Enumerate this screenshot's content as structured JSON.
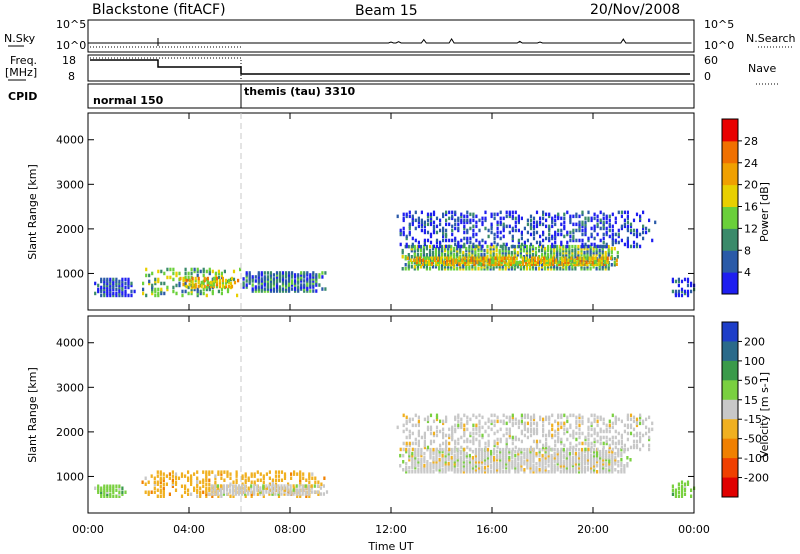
{
  "header": {
    "station": "Blackstone (fitACF)",
    "beam": "Beam 15",
    "date": "20/Nov/2008"
  },
  "strips": {
    "nsky_label": "N.Sky",
    "nsky_ticks": [
      "10^5",
      "10^0"
    ],
    "nsearch_label": "N.Search",
    "nsearch_ticks": [
      "10^5",
      "10^0"
    ],
    "freq_label": "Freq.",
    "freq_unit": "[MHz]",
    "freq_ticks": [
      "18",
      "8"
    ],
    "nave_label": "Nave",
    "nave_ticks": [
      "60",
      "0"
    ],
    "cpid_label": "CPID",
    "cpid_segments": [
      {
        "name": "normal 150",
        "start_hour": 0,
        "end_hour": 6
      },
      {
        "name": "themis (tau) 3310",
        "start_hour": 6,
        "end_hour": 24
      }
    ]
  },
  "chart_data": [
    {
      "type": "heatmap",
      "title": "",
      "ylabel": "Slant Range [km]",
      "xlabel": "",
      "xlim_hours": [
        0,
        24
      ],
      "ylim": [
        180,
        4600
      ],
      "yticks": [
        1000,
        2000,
        3000,
        4000
      ],
      "colorbar": {
        "label": "Power [dB]",
        "ticks": [
          4,
          8,
          12,
          16,
          20,
          24,
          28
        ],
        "range": [
          0,
          32
        ],
        "colors": [
          "#1e1ef0",
          "#2a5aa8",
          "#3a8a6a",
          "#6ad03a",
          "#e8d000",
          "#f0a000",
          "#f07000",
          "#e80000"
        ]
      },
      "regions": [
        {
          "t0": 0.0,
          "t1": 1.9,
          "r0": 500,
          "r1": 900,
          "level": 1
        },
        {
          "t0": 1.9,
          "t1": 6.0,
          "r0": 500,
          "r1": 1100,
          "level": 3
        },
        {
          "t0": 3.5,
          "t1": 6.0,
          "r0": 700,
          "r1": 900,
          "level": 5
        },
        {
          "t0": 6.0,
          "t1": 9.5,
          "r0": 600,
          "r1": 1050,
          "level": 2
        },
        {
          "t0": 12.3,
          "t1": 21.0,
          "r0": 1100,
          "r1": 1600,
          "level": 3
        },
        {
          "t0": 12.5,
          "t1": 21.0,
          "r0": 1200,
          "r1": 1350,
          "level": 5
        },
        {
          "t0": 12.1,
          "t1": 22.5,
          "r0": 1600,
          "r1": 2400,
          "level": 1
        },
        {
          "t0": 23.0,
          "t1": 24.0,
          "r0": 500,
          "r1": 900,
          "level": 1
        }
      ]
    },
    {
      "type": "heatmap",
      "title": "",
      "ylabel": "Slant Range [km]",
      "xlabel": "Time UT",
      "xlim_hours": [
        0,
        24
      ],
      "xticks": [
        "00:00",
        "04:00",
        "08:00",
        "12:00",
        "16:00",
        "20:00",
        "00:00"
      ],
      "ylim": [
        180,
        4600
      ],
      "yticks": [
        1000,
        2000,
        3000,
        4000
      ],
      "colorbar": {
        "label": "Velocity [m s-1]",
        "ticks": [
          "200",
          "100",
          "50",
          "15",
          "-15",
          "-50",
          "-100",
          "-200"
        ],
        "colors": [
          "#1e3ec8",
          "#2a6a8a",
          "#3a9a4a",
          "#7ad040",
          "#c8c8c8",
          "#f0b020",
          "#f08000",
          "#f04000",
          "#e00000"
        ]
      },
      "regions": [
        {
          "t0": 0.0,
          "t1": 1.6,
          "r0": 550,
          "r1": 800,
          "color_index": 3
        },
        {
          "t0": 2.0,
          "t1": 9.5,
          "r0": 550,
          "r1": 1100,
          "color_index": 5
        },
        {
          "t0": 4.5,
          "t1": 9.5,
          "r0": 600,
          "r1": 800,
          "color_index": 4
        },
        {
          "t0": 12.2,
          "t1": 21.5,
          "r0": 1100,
          "r1": 1600,
          "color_index": 4
        },
        {
          "t0": 12.1,
          "t1": 22.5,
          "r0": 1600,
          "r1": 2400,
          "color_index": 4
        },
        {
          "t0": 23.0,
          "t1": 24.0,
          "r0": 550,
          "r1": 900,
          "color_index": 3
        }
      ]
    }
  ]
}
